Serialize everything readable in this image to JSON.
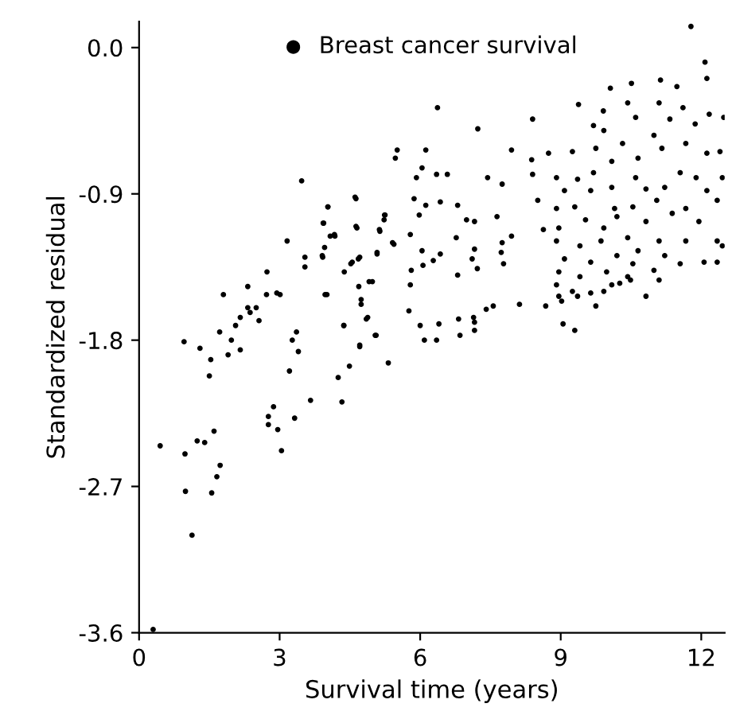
{
  "chart_data": {
    "type": "scatter",
    "xlabel": "Survival time (years)",
    "ylabel": "Standardized residual",
    "xlim": [
      0,
      12.5
    ],
    "ylim": [
      -3.6,
      0.16
    ],
    "xticks": [
      0,
      3,
      6,
      9,
      12
    ],
    "yticks": [
      {
        "value": 0,
        "label": "0.0"
      },
      -0.9,
      -1.8,
      -2.7,
      -3.6
    ],
    "legend": "top left",
    "marker": "circle",
    "grid": false,
    "series": [
      {
        "name": "Breast cancer survival",
        "color": "#000000",
        "x": [
          0.3,
          3.47,
          0.96,
          1.3,
          1.53,
          1.5,
          1.8,
          1.72,
          1.9,
          1.97,
          2.06,
          2.16,
          2.16,
          2.32,
          2.32,
          2.37,
          2.5,
          2.56,
          2.73,
          2.72,
          2.94,
          3.01,
          3.16,
          3.21,
          3.27,
          3.36,
          3.4,
          3.54,
          3.54,
          3.66,
          3.32,
          2.87,
          2.76,
          2.76,
          2.96,
          3.04,
          1.6,
          1.24,
          1.4,
          0.98,
          0.45,
          1.73,
          1.66,
          1.55,
          0.99,
          1.13,
          3.91,
          3.94,
          4.03,
          3.96,
          3.97,
          4.08,
          4.17,
          4.37,
          4.38,
          4.25,
          4.33,
          4.49,
          4.55,
          4.61,
          4.63,
          4.71,
          4.69,
          4.74,
          4.71,
          4.88,
          4.98,
          5.04,
          5.08,
          5.13,
          5.24,
          5.32,
          5.41,
          6.37,
          7.23,
          5.51,
          5.47,
          6.12,
          7.95,
          6.04,
          6.35,
          6.58,
          5.92,
          7.44,
          7.75,
          4.63,
          5.87,
          6.43,
          6.8,
          4.03,
          6.12,
          5.98,
          5.25,
          5.23,
          7.64,
          6.99,
          7.16,
          3.93,
          4.65,
          5.14,
          5.79,
          4.18,
          6.77,
          7.75,
          7.95,
          5.44,
          6.04,
          6.43,
          3.92,
          5.08,
          4.68,
          7.16,
          7.73,
          7.11,
          6.28,
          4.52,
          6.06,
          7.78,
          6.8,
          5.81,
          4.91,
          5.79,
          4.01,
          7.22,
          8.12,
          7.56,
          7.41,
          7.14,
          6.82,
          5.76,
          4.74,
          4.85,
          4.37,
          5.06,
          4.71,
          6.0,
          6.09,
          6.35,
          6.4,
          6.85,
          7.16,
          7.16,
          8.4,
          9.38,
          10.06,
          10.51,
          11.13,
          11.48,
          12.08,
          12.12,
          11.78,
          9.91,
          10.43,
          10.6,
          11.1,
          11.33,
          11.61,
          12.17,
          11.87,
          12.48,
          9.7,
          9.92,
          10.32,
          10.99,
          11.67,
          8.38,
          8.74,
          9.25,
          9.75,
          10.09,
          10.65,
          11.16,
          12.12,
          12.4,
          8.4,
          8.91,
          9.36,
          9.7,
          10.6,
          11.55,
          11.89,
          12.45,
          9.08,
          9.64,
          10.09,
          10.82,
          11.22,
          12.12,
          8.51,
          8.91,
          9.3,
          10.15,
          10.54,
          11.05,
          11.67,
          12.34,
          8.63,
          8.96,
          9.53,
          9.92,
          10.2,
          10.82,
          11.38,
          11.95,
          8.91,
          9.41,
          9.86,
          10.43,
          10.65,
          11.1,
          11.67,
          12.34,
          9.08,
          9.64,
          10.2,
          10.54,
          11.22,
          12.06,
          12.45,
          8.96,
          9.41,
          9.98,
          10.43,
          10.99,
          11.55,
          8.91,
          9.25,
          9.64,
          10.09,
          10.49,
          11.1,
          12.34,
          8.96,
          9.36,
          9.92,
          10.26,
          8.68,
          9.02,
          9.75,
          10.82,
          9.05,
          9.3
        ],
        "values": [
          -3.58,
          -0.82,
          -1.81,
          -1.85,
          -1.92,
          -2.02,
          -1.52,
          -1.75,
          -1.89,
          -1.8,
          -1.71,
          -1.66,
          -1.86,
          -1.47,
          -1.6,
          -1.63,
          -1.6,
          -1.68,
          -1.38,
          -1.52,
          -1.51,
          -1.52,
          -1.19,
          -1.99,
          -1.8,
          -1.75,
          -1.87,
          -1.29,
          -1.35,
          -2.17,
          -2.28,
          -2.21,
          -2.27,
          -2.32,
          -2.35,
          -2.48,
          -2.36,
          -2.42,
          -2.43,
          -2.5,
          -2.45,
          -2.57,
          -2.64,
          -2.74,
          -2.73,
          -3.0,
          -1.28,
          -1.08,
          -0.98,
          -1.23,
          -1.52,
          -1.16,
          -1.15,
          -1.71,
          -1.38,
          -2.03,
          -2.18,
          -1.96,
          -1.32,
          -0.92,
          -1.1,
          -1.29,
          -1.47,
          -1.55,
          -1.84,
          -1.66,
          -1.44,
          -1.77,
          -1.26,
          -1.12,
          -1.03,
          -1.94,
          -1.2,
          -0.37,
          -0.5,
          -0.63,
          -0.68,
          -0.63,
          -0.63,
          -0.74,
          -0.78,
          -0.78,
          -0.8,
          -0.8,
          -0.84,
          -0.93,
          -0.93,
          -0.95,
          -0.97,
          -0.98,
          -0.97,
          -1.03,
          -1.03,
          -1.06,
          -1.04,
          -1.06,
          -1.07,
          -1.08,
          -1.11,
          -1.13,
          -1.15,
          -1.16,
          -1.17,
          -1.2,
          -1.16,
          -1.21,
          -1.25,
          -1.27,
          -1.29,
          -1.27,
          -1.3,
          -1.24,
          -1.26,
          -1.3,
          -1.31,
          -1.33,
          -1.34,
          -1.33,
          -1.4,
          -1.37,
          -1.44,
          -1.46,
          -1.52,
          -1.36,
          -1.58,
          -1.59,
          -1.61,
          -1.66,
          -1.67,
          -1.62,
          -1.58,
          -1.67,
          -1.71,
          -1.77,
          -1.83,
          -1.71,
          -1.8,
          -1.8,
          -1.7,
          -1.77,
          -1.69,
          -1.74,
          -0.44,
          -0.35,
          -0.25,
          -0.22,
          -0.2,
          -0.24,
          -0.09,
          -0.19,
          0.13,
          -0.39,
          -0.34,
          -0.43,
          -0.34,
          -0.44,
          -0.37,
          -0.41,
          -0.47,
          -0.43,
          -0.48,
          -0.51,
          -0.59,
          -0.54,
          -0.59,
          -0.69,
          -0.65,
          -0.64,
          -0.62,
          -0.7,
          -0.68,
          -0.62,
          -0.65,
          -0.64,
          -0.78,
          -0.8,
          -0.81,
          -0.77,
          -0.8,
          -0.77,
          -0.8,
          -0.8,
          -0.88,
          -0.88,
          -0.86,
          -0.87,
          -0.86,
          -0.88,
          -0.94,
          -0.99,
          -0.98,
          -0.99,
          -0.98,
          -0.94,
          -0.99,
          -0.94,
          -1.12,
          -1.11,
          -1.06,
          -1.11,
          -1.04,
          -1.07,
          -1.02,
          -1.07,
          -1.19,
          -1.22,
          -1.19,
          -1.17,
          -1.25,
          -1.19,
          -1.19,
          -1.19,
          -1.3,
          -1.32,
          -1.28,
          -1.33,
          -1.28,
          -1.32,
          -1.22,
          -1.38,
          -1.41,
          -1.38,
          -1.41,
          -1.37,
          -1.33,
          -1.46,
          -1.5,
          -1.51,
          -1.46,
          -1.43,
          -1.43,
          -1.32,
          -1.53,
          -1.53,
          -1.5,
          -1.45,
          -1.59,
          -1.56,
          -1.59,
          -1.53,
          -1.7,
          -1.74
        ]
      }
    ]
  }
}
